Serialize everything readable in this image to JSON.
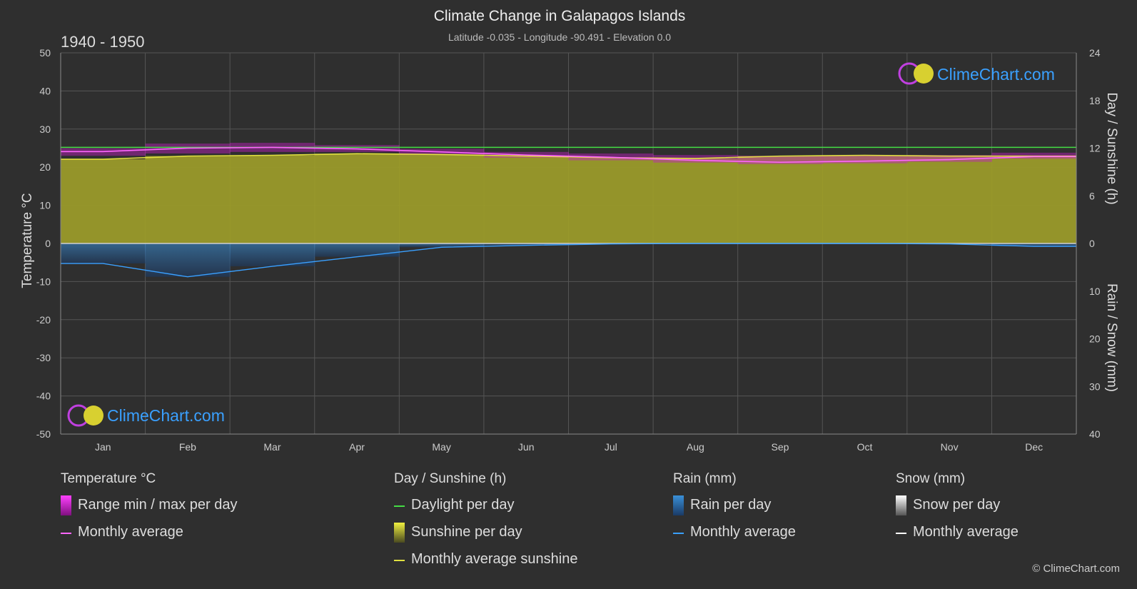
{
  "colors": {
    "background": "#2f2f2f",
    "grid": "#555555",
    "temp_range": "#c020c0",
    "temp_avg": "#ff66ff",
    "daylight": "#44dd44",
    "sunshine_fill": "#9a9a2a",
    "sunshine_avg": "#e0e040",
    "rain": "#2a7fc0",
    "rain_avg": "#3aa0ff",
    "snow": "#ffffff",
    "brand_blue": "#3aa0ff",
    "brand_magenta": "#c040e0",
    "brand_yellow": "#e8e040"
  },
  "chart_data": {
    "type": "area",
    "title": "Climate Change in Galapagos Islands",
    "subtitle": "Latitude -0.035 - Longitude -90.491 - Elevation 0.0",
    "period": "1940 - 1950",
    "categories": [
      "Jan",
      "Feb",
      "Mar",
      "Apr",
      "May",
      "Jun",
      "Jul",
      "Aug",
      "Sep",
      "Oct",
      "Nov",
      "Dec"
    ],
    "axes": {
      "left": {
        "label": "Temperature °C",
        "min": -50,
        "max": 50,
        "ticks": [
          50,
          40,
          30,
          20,
          10,
          0,
          -10,
          -20,
          -30,
          -40,
          -50
        ]
      },
      "right_top": {
        "label": "Day / Sunshine (h)",
        "min": 0,
        "max": 24,
        "ticks": [
          24,
          18,
          12,
          6,
          0
        ]
      },
      "right_bottom": {
        "label": "Rain / Snow (mm)",
        "min": 0,
        "max": 40,
        "ticks": [
          0,
          10,
          20,
          30,
          40
        ]
      }
    },
    "series": [
      {
        "name": "Range min / max per day",
        "unit": "°C",
        "min": [
          23.0,
          23.6,
          24.0,
          24.0,
          23.2,
          22.5,
          21.8,
          21.2,
          20.8,
          21.0,
          21.4,
          22.2
        ],
        "max": [
          25.0,
          26.2,
          26.4,
          25.8,
          24.8,
          24.0,
          23.6,
          23.2,
          23.0,
          23.0,
          23.2,
          23.8
        ]
      },
      {
        "name": "Monthly average",
        "unit": "°C",
        "values": [
          24.1,
          25.0,
          25.2,
          24.8,
          24.0,
          23.2,
          22.6,
          21.8,
          21.3,
          21.6,
          22.0,
          22.8
        ]
      },
      {
        "name": "Daylight per day",
        "unit": "h",
        "values": [
          12.1,
          12.1,
          12.1,
          12.1,
          12.1,
          12.1,
          12.1,
          12.1,
          12.1,
          12.1,
          12.1,
          12.1
        ]
      },
      {
        "name": "Sunshine per day",
        "unit": "h",
        "values": [
          10.6,
          11.0,
          11.1,
          11.3,
          11.2,
          11.0,
          10.8,
          10.7,
          11.0,
          11.1,
          11.0,
          11.0
        ]
      },
      {
        "name": "Monthly average sunshine",
        "unit": "h",
        "values": [
          10.6,
          11.0,
          11.1,
          11.3,
          11.2,
          11.0,
          10.8,
          10.7,
          11.0,
          11.1,
          11.0,
          11.0
        ]
      },
      {
        "name": "Rain per day",
        "unit": "mm",
        "values": [
          4.2,
          7.0,
          4.8,
          2.8,
          0.8,
          0.4,
          0.1,
          0.0,
          0.0,
          0.0,
          0.1,
          0.6
        ]
      },
      {
        "name": "Monthly average",
        "unit": "mm",
        "values": [
          4.2,
          7.0,
          4.8,
          2.8,
          0.8,
          0.4,
          0.1,
          0.0,
          0.0,
          0.0,
          0.1,
          0.6
        ]
      },
      {
        "name": "Snow per day",
        "unit": "mm",
        "values": [
          0,
          0,
          0,
          0,
          0,
          0,
          0,
          0,
          0,
          0,
          0,
          0
        ]
      },
      {
        "name": "Monthly average",
        "unit": "mm",
        "values": [
          0,
          0,
          0,
          0,
          0,
          0,
          0,
          0,
          0,
          0,
          0,
          0
        ]
      }
    ],
    "grid": true,
    "legend_position": "bottom"
  },
  "brand": {
    "text": "ClimeChart.com"
  },
  "legend": {
    "temperature": {
      "title": "Temperature °C",
      "items": [
        "Range min / max per day",
        "Monthly average"
      ]
    },
    "sunshine": {
      "title": "Day / Sunshine (h)",
      "items": [
        "Daylight per day",
        "Sunshine per day",
        "Monthly average sunshine"
      ]
    },
    "rain": {
      "title": "Rain (mm)",
      "items": [
        "Rain per day",
        "Monthly average"
      ]
    },
    "snow": {
      "title": "Snow (mm)",
      "items": [
        "Snow per day",
        "Monthly average"
      ]
    }
  },
  "copyright": "© ClimeChart.com"
}
